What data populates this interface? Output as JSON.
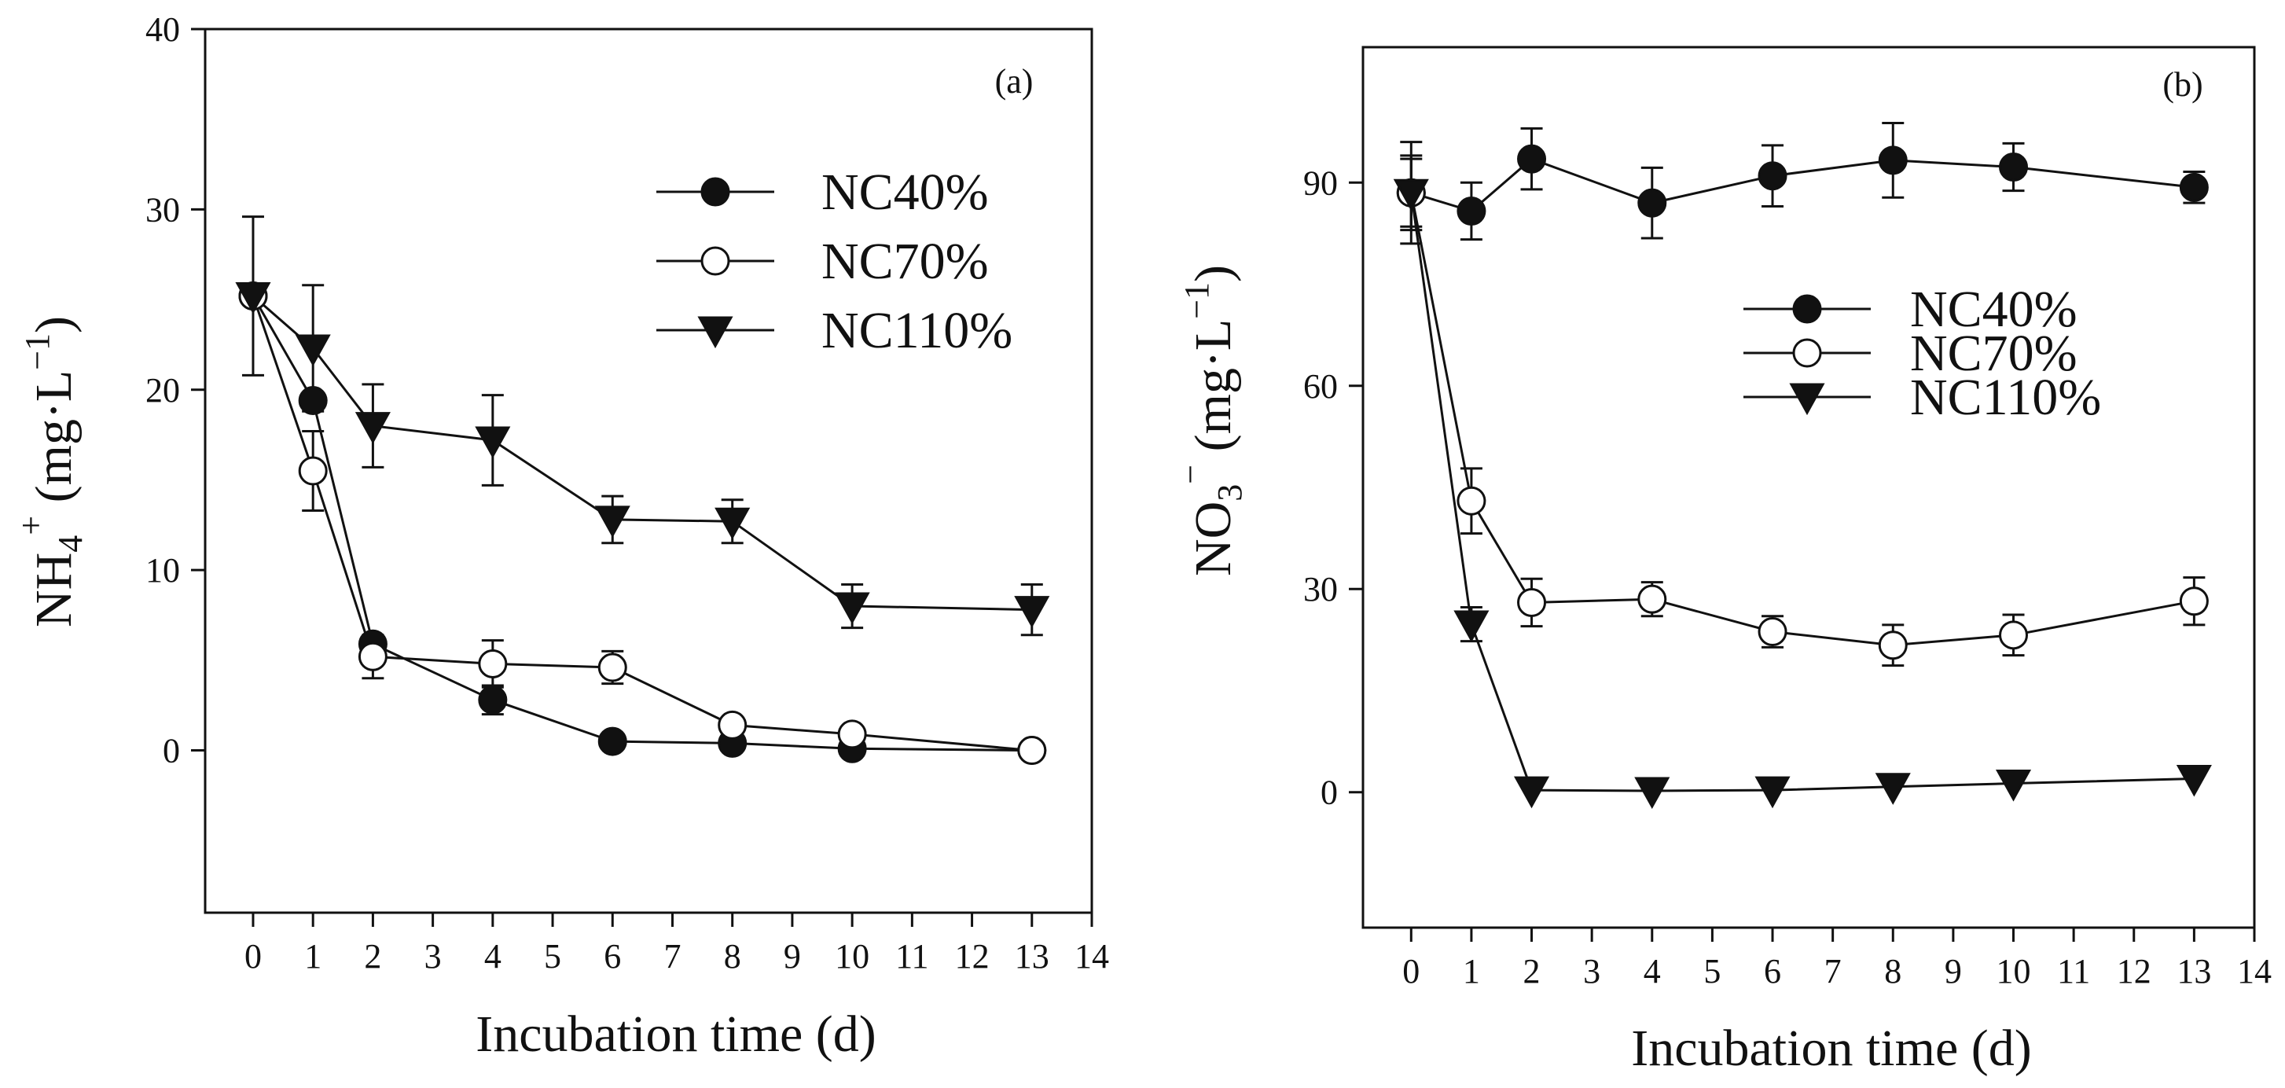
{
  "chart_data": [
    {
      "type": "line",
      "panel_label": "(a)",
      "xlabel": "Incubation time (d)",
      "ylabel": "NH4+ (mg·L−1)",
      "ylabel_parts": {
        "base": "NH",
        "sub": "4",
        "sup": "+",
        "unit_open": " (mg·L",
        "unit_sup": "−1",
        "unit_close": ")"
      },
      "xlim": [
        -0.8,
        14
      ],
      "ylim": [
        -9,
        40
      ],
      "xticks": [
        0,
        1,
        2,
        3,
        4,
        5,
        6,
        7,
        8,
        9,
        10,
        11,
        12,
        13,
        14
      ],
      "yticks": [
        0,
        10,
        20,
        30,
        40
      ],
      "x": [
        0,
        1,
        2,
        4,
        6,
        8,
        10,
        13
      ],
      "legend_position": "upper-right",
      "series": [
        {
          "name": "NC40%",
          "marker": "filled-circle",
          "values": [
            25.2,
            19.4,
            5.9,
            2.8,
            0.5,
            0.4,
            0.1,
            0.0
          ],
          "errors": [
            0,
            0,
            0,
            0.8,
            0,
            0,
            0,
            0
          ]
        },
        {
          "name": "NC70%",
          "marker": "open-circle",
          "values": [
            25.2,
            15.5,
            5.2,
            4.8,
            4.6,
            1.4,
            0.9,
            0.0
          ],
          "errors": [
            0,
            2.2,
            1.2,
            1.3,
            0.9,
            0,
            0,
            0
          ]
        },
        {
          "name": "NC110%",
          "marker": "filled-triangle-down",
          "values": [
            25.2,
            22.3,
            18.0,
            17.2,
            12.8,
            12.7,
            8.0,
            7.8
          ],
          "errors": [
            4.4,
            3.5,
            2.3,
            2.5,
            1.3,
            1.2,
            1.2,
            1.4
          ]
        }
      ]
    },
    {
      "type": "line",
      "panel_label": "(b)",
      "xlabel": "Incubation time (d)",
      "ylabel": "NO3− (mg·L−1)",
      "ylabel_parts": {
        "base": "NO",
        "sub": "3",
        "sup": "−",
        "unit_open": " (mg·L",
        "unit_sup": "−1",
        "unit_close": ")"
      },
      "xlim": [
        -0.8,
        14
      ],
      "ylim": [
        -20,
        110
      ],
      "xticks": [
        0,
        1,
        2,
        3,
        4,
        5,
        6,
        7,
        8,
        9,
        10,
        11,
        12,
        13,
        14
      ],
      "yticks": [
        0,
        30,
        60,
        90
      ],
      "x": [
        0,
        1,
        2,
        4,
        6,
        8,
        10,
        13
      ],
      "legend_position": "center-right",
      "series": [
        {
          "name": "NC40%",
          "marker": "filled-circle",
          "values": [
            88.5,
            85.8,
            93.5,
            87.0,
            91.0,
            93.3,
            92.3,
            89.3
          ],
          "errors": [
            7.5,
            4.2,
            4.5,
            5.2,
            4.5,
            5.5,
            3.5,
            2.3
          ]
        },
        {
          "name": "NC70%",
          "marker": "open-circle",
          "values": [
            88.5,
            43.0,
            28.0,
            28.5,
            23.7,
            21.7,
            23.2,
            28.2
          ],
          "errors": [
            5.5,
            4.8,
            3.5,
            2.5,
            2.3,
            3.0,
            3.0,
            3.5
          ]
        },
        {
          "name": "NC110%",
          "marker": "filled-triangle-down",
          "values": [
            88.5,
            24.8,
            0.3,
            0.2,
            0.3,
            0.8,
            1.3,
            2.0
          ],
          "errors": [
            5.0,
            2.5,
            0,
            0,
            0,
            0,
            0,
            0
          ]
        }
      ]
    }
  ]
}
